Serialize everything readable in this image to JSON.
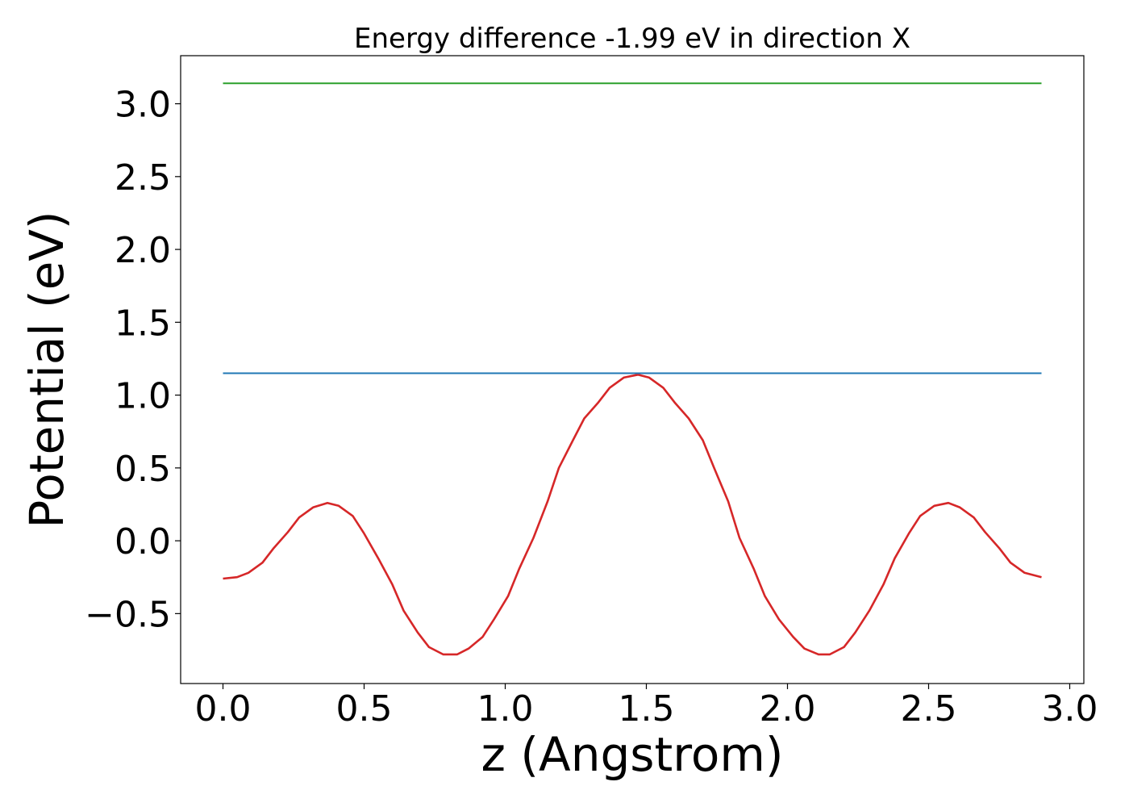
{
  "chart_data": {
    "type": "line",
    "title": "Energy difference -1.99 eV in direction X",
    "xlabel": "z (Angstrom)",
    "ylabel": "Potential (eV)",
    "xlim": [
      -0.15,
      3.05
    ],
    "ylim": [
      -0.98,
      3.33
    ],
    "xticks": [
      0.0,
      0.5,
      1.0,
      1.5,
      2.0,
      2.5,
      3.0
    ],
    "xtick_labels": [
      "0.0",
      "0.5",
      "1.0",
      "1.5",
      "2.0",
      "2.5",
      "3.0"
    ],
    "yticks": [
      -0.5,
      0.0,
      0.5,
      1.0,
      1.5,
      2.0,
      2.5,
      3.0
    ],
    "ytick_labels": [
      "−0.5",
      "0.0",
      "0.5",
      "1.0",
      "1.5",
      "2.0",
      "2.5",
      "3.0"
    ],
    "grid": false,
    "colors": {
      "series_0": "#d62728",
      "series_1": "#1f77b4",
      "series_2": "#2ca02c",
      "axes": "#000000"
    },
    "series": [
      {
        "x": [
          0.0,
          0.05,
          0.09,
          0.14,
          0.18,
          0.23,
          0.27,
          0.32,
          0.37,
          0.41,
          0.46,
          0.5,
          0.55,
          0.6,
          0.64,
          0.69,
          0.73,
          0.78,
          0.83,
          0.87,
          0.92,
          0.96,
          1.01,
          1.05,
          1.1,
          1.15,
          1.19,
          1.24,
          1.28,
          1.33,
          1.37,
          1.42,
          1.47,
          1.51,
          1.56,
          1.6,
          1.65,
          1.7,
          1.74,
          1.79,
          1.83,
          1.88,
          1.92,
          1.97,
          2.02,
          2.06,
          2.11,
          2.15,
          2.2,
          2.24,
          2.29,
          2.34,
          2.38,
          2.43,
          2.47,
          2.52,
          2.57,
          2.61,
          2.66,
          2.7,
          2.75,
          2.79,
          2.84,
          2.9
        ],
        "y": [
          -0.26,
          -0.25,
          -0.22,
          -0.15,
          -0.05,
          0.06,
          0.16,
          0.23,
          0.26,
          0.24,
          0.17,
          0.05,
          -0.12,
          -0.3,
          -0.48,
          -0.63,
          -0.73,
          -0.78,
          -0.78,
          -0.74,
          -0.66,
          -0.54,
          -0.38,
          -0.19,
          0.02,
          0.27,
          0.5,
          0.69,
          0.84,
          0.95,
          1.05,
          1.12,
          1.14,
          1.12,
          1.05,
          0.95,
          0.84,
          0.69,
          0.5,
          0.27,
          0.02,
          -0.19,
          -0.38,
          -0.54,
          -0.66,
          -0.74,
          -0.78,
          -0.78,
          -0.73,
          -0.63,
          -0.48,
          -0.3,
          -0.12,
          0.05,
          0.17,
          0.24,
          0.26,
          0.23,
          0.16,
          0.06,
          -0.05,
          -0.15,
          -0.22,
          -0.25
        ]
      },
      {
        "x": [
          0.0,
          2.9
        ],
        "y": [
          1.15,
          1.15
        ]
      },
      {
        "x": [
          0.0,
          2.9
        ],
        "y": [
          3.14,
          3.14
        ]
      }
    ]
  }
}
